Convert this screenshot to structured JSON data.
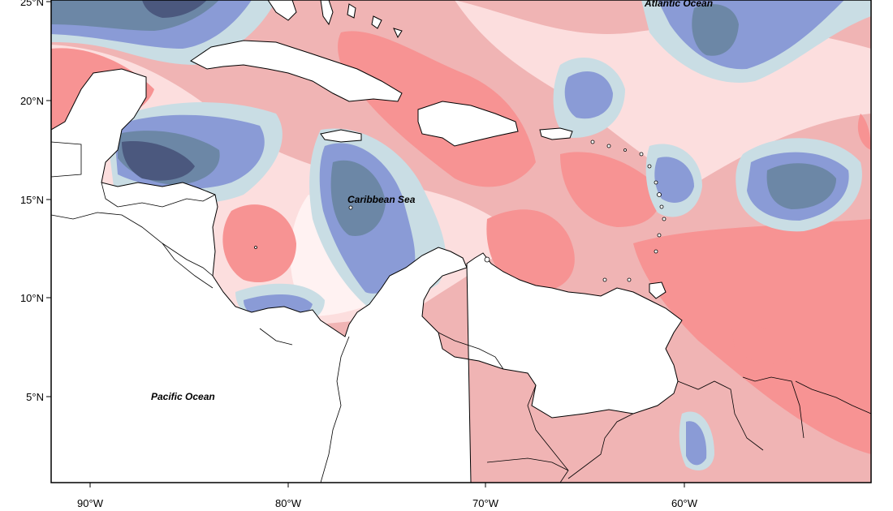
{
  "map": {
    "ocean_labels": {
      "atlantic": "Atlantic Ocean",
      "caribbean": "Caribbean Sea",
      "pacific": "Pacific Ocean"
    },
    "lat_ticks": [
      "25°N",
      "20°N",
      "15°N",
      "10°N",
      "5°N"
    ],
    "lon_ticks": [
      "90°W",
      "80°W",
      "70°W",
      "60°W"
    ],
    "colors": {
      "strong_positive": "#f79393",
      "moderate_positive": "#f0b4b4",
      "weak_positive": "#fcdede",
      "neutral": "#fff2f2",
      "weak_negative": "#c9dde4",
      "moderate_negative": "#8a9bd6",
      "strong_negative": "#6c87a6",
      "very_strong_negative": "#4b587e",
      "land": "#ffffff",
      "coastline": "#000000"
    }
  }
}
